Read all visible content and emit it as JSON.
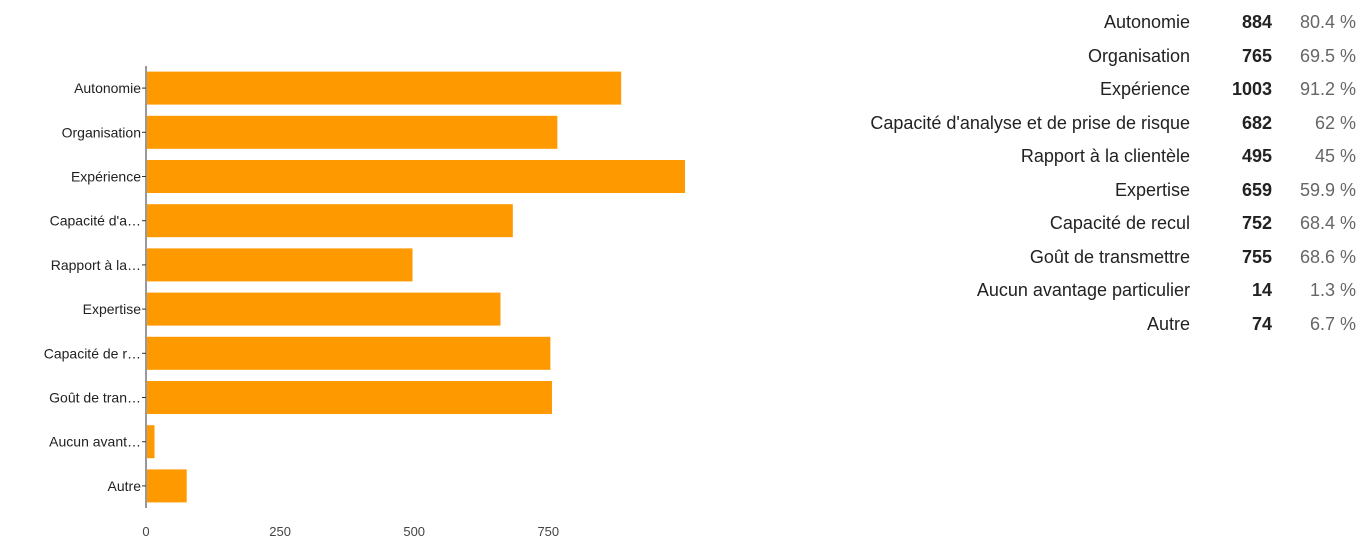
{
  "chart_data": {
    "type": "bar",
    "orientation": "horizontal",
    "categories": [
      "Autonomie",
      "Organisation",
      "Expérience",
      "Capacité d'a…",
      "Rapport à la…",
      "Expertise",
      "Capacité de r…",
      "Goût de tran…",
      "Aucun avant…",
      "Autre"
    ],
    "values": [
      884,
      765,
      1003,
      682,
      495,
      659,
      752,
      755,
      14,
      74
    ],
    "x_ticks": [
      "0",
      "250",
      "500",
      "750"
    ],
    "xlim": [
      0,
      1003
    ],
    "bar_color": "#ff9900",
    "axis_color": "#333333",
    "grid": false
  },
  "summary": {
    "rows": [
      {
        "label": "Autonomie",
        "count": "884",
        "percent": "80.4 %"
      },
      {
        "label": "Organisation",
        "count": "765",
        "percent": "69.5 %"
      },
      {
        "label": "Expérience",
        "count": "1003",
        "percent": "91.2 %"
      },
      {
        "label": "Capacité d'analyse et de prise de risque",
        "count": "682",
        "percent": "62 %"
      },
      {
        "label": "Rapport à la clientèle",
        "count": "495",
        "percent": "45 %"
      },
      {
        "label": "Expertise",
        "count": "659",
        "percent": "59.9 %"
      },
      {
        "label": "Capacité de recul",
        "count": "752",
        "percent": "68.4 %"
      },
      {
        "label": "Goût de transmettre",
        "count": "755",
        "percent": "68.6 %"
      },
      {
        "label": "Aucun avantage particulier",
        "count": "14",
        "percent": "1.3 %"
      },
      {
        "label": "Autre",
        "count": "74",
        "percent": "6.7 %"
      }
    ]
  }
}
